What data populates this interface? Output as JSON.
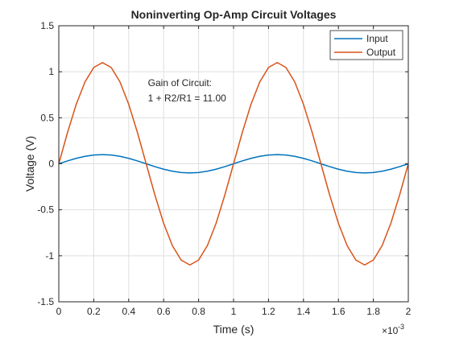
{
  "chart_data": {
    "type": "line",
    "title": "Noninverting Op-Amp Circuit Voltages",
    "xlabel": "Time (s)",
    "ylabel": "Voltage (V)",
    "x_exponent_label": "×10",
    "x_exponent_power": "-3",
    "xlim": [
      0,
      2
    ],
    "ylim": [
      -1.5,
      1.5
    ],
    "xticks": [
      0,
      0.2,
      0.4,
      0.6,
      0.8,
      1,
      1.2,
      1.4,
      1.6,
      1.8,
      2
    ],
    "xtick_labels": [
      "0",
      "0.2",
      "0.4",
      "0.6",
      "0.8",
      "1",
      "1.2",
      "1.4",
      "1.6",
      "1.8",
      "2"
    ],
    "yticks": [
      -1.5,
      -1,
      -0.5,
      0,
      0.5,
      1,
      1.5
    ],
    "ytick_labels": [
      "-1.5",
      "-1",
      "-0.5",
      "0",
      "0.5",
      "1",
      "1.5"
    ],
    "grid": true,
    "legend_position": "top-right",
    "x_unit_note": "x values in ms (×10^-3 s)",
    "series": [
      {
        "name": "Input",
        "color": "#0072BD",
        "x": [
          0,
          0.05,
          0.1,
          0.15,
          0.2,
          0.25,
          0.3,
          0.35,
          0.4,
          0.45,
          0.5,
          0.55,
          0.6,
          0.65,
          0.7,
          0.75,
          0.8,
          0.85,
          0.9,
          0.95,
          1,
          1.05,
          1.1,
          1.15,
          1.2,
          1.25,
          1.3,
          1.35,
          1.4,
          1.45,
          1.5,
          1.55,
          1.6,
          1.65,
          1.7,
          1.75,
          1.8,
          1.85,
          1.9,
          1.95,
          2
        ],
        "y": [
          0,
          0.031,
          0.059,
          0.081,
          0.095,
          0.1,
          0.095,
          0.081,
          0.059,
          0.031,
          0,
          -0.031,
          -0.059,
          -0.081,
          -0.095,
          -0.1,
          -0.095,
          -0.081,
          -0.059,
          -0.031,
          0,
          0.031,
          0.059,
          0.081,
          0.095,
          0.1,
          0.095,
          0.081,
          0.059,
          0.031,
          0,
          -0.031,
          -0.059,
          -0.081,
          -0.095,
          -0.1,
          -0.095,
          -0.081,
          -0.059,
          -0.031,
          0
        ]
      },
      {
        "name": "Output",
        "color": "#D95319",
        "x": [
          0,
          0.05,
          0.1,
          0.15,
          0.2,
          0.25,
          0.3,
          0.35,
          0.4,
          0.45,
          0.5,
          0.55,
          0.6,
          0.65,
          0.7,
          0.75,
          0.8,
          0.85,
          0.9,
          0.95,
          1,
          1.05,
          1.1,
          1.15,
          1.2,
          1.25,
          1.3,
          1.35,
          1.4,
          1.45,
          1.5,
          1.55,
          1.6,
          1.65,
          1.7,
          1.75,
          1.8,
          1.85,
          1.9,
          1.95,
          2
        ],
        "y": [
          0,
          0.34,
          0.647,
          0.89,
          1.046,
          1.1,
          1.046,
          0.89,
          0.647,
          0.34,
          0,
          -0.34,
          -0.647,
          -0.89,
          -1.046,
          -1.1,
          -1.046,
          -0.89,
          -0.647,
          -0.34,
          0,
          0.34,
          0.647,
          0.89,
          1.046,
          1.1,
          1.046,
          0.89,
          0.647,
          0.34,
          0,
          -0.34,
          -0.647,
          -0.89,
          -1.046,
          -1.1,
          -1.046,
          -0.89,
          -0.647,
          -0.34,
          0
        ]
      }
    ],
    "annotation": {
      "line1": "Gain of Circuit:",
      "line2": "1 + R2/R1 = 11.00",
      "x": 0.51,
      "y": 0.88
    }
  }
}
